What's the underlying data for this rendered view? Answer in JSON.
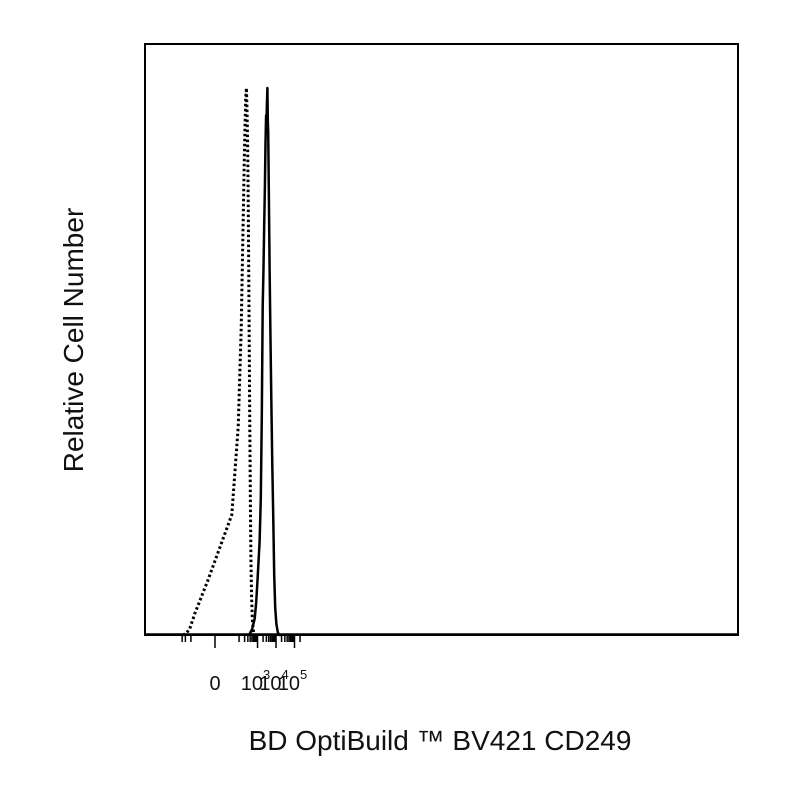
{
  "chart_data": {
    "type": "line",
    "title": "",
    "xlabel": "BD OptiBuild ™ BV421 CD249",
    "ylabel": "Relative Cell Number",
    "xscale": "biexponential",
    "x_ticks": [
      {
        "value": 0,
        "base": "0",
        "exp": ""
      },
      {
        "value": 1000,
        "base": "10",
        "exp": "3"
      },
      {
        "value": 10000,
        "base": "10",
        "exp": "4"
      },
      {
        "value": 100000,
        "base": "10",
        "exp": "5"
      }
    ],
    "y_ticks": [],
    "grid": false,
    "legend": "none",
    "series": [
      {
        "style": "dotted",
        "color": "#000000",
        "x": [
          -280,
          -200,
          -120,
          -60,
          -10,
          40,
          90,
          130,
          160,
          190,
          210,
          230,
          250,
          270,
          290,
          310,
          330,
          355,
          380,
          410,
          440,
          480,
          520,
          580,
          650
        ],
        "y": [
          0,
          0.2,
          1,
          4,
          10,
          22,
          38,
          56,
          72,
          86,
          93,
          98,
          100,
          96,
          90,
          82,
          70,
          54,
          38,
          24,
          14,
          7,
          3,
          1,
          0
        ]
      },
      {
        "style": "solid",
        "color": "#000000",
        "x": [
          350,
          500,
          700,
          850,
          1000,
          1150,
          1300,
          1500,
          1700,
          1900,
          2100,
          2300,
          2500,
          2700,
          2900,
          3000,
          3200,
          3400,
          3600,
          3800,
          4100,
          4500,
          5000,
          5600,
          6300,
          7100,
          8000,
          9000,
          10500,
          12500,
          15000,
          20000
        ],
        "y": [
          0,
          1,
          3,
          6,
          10,
          14,
          17,
          25,
          40,
          60,
          67,
          75,
          82,
          90,
          95,
          93,
          97,
          100,
          94,
          92,
          80,
          67,
          54,
          42,
          31,
          21,
          11,
          5,
          2,
          0.5,
          0,
          0
        ]
      }
    ]
  }
}
